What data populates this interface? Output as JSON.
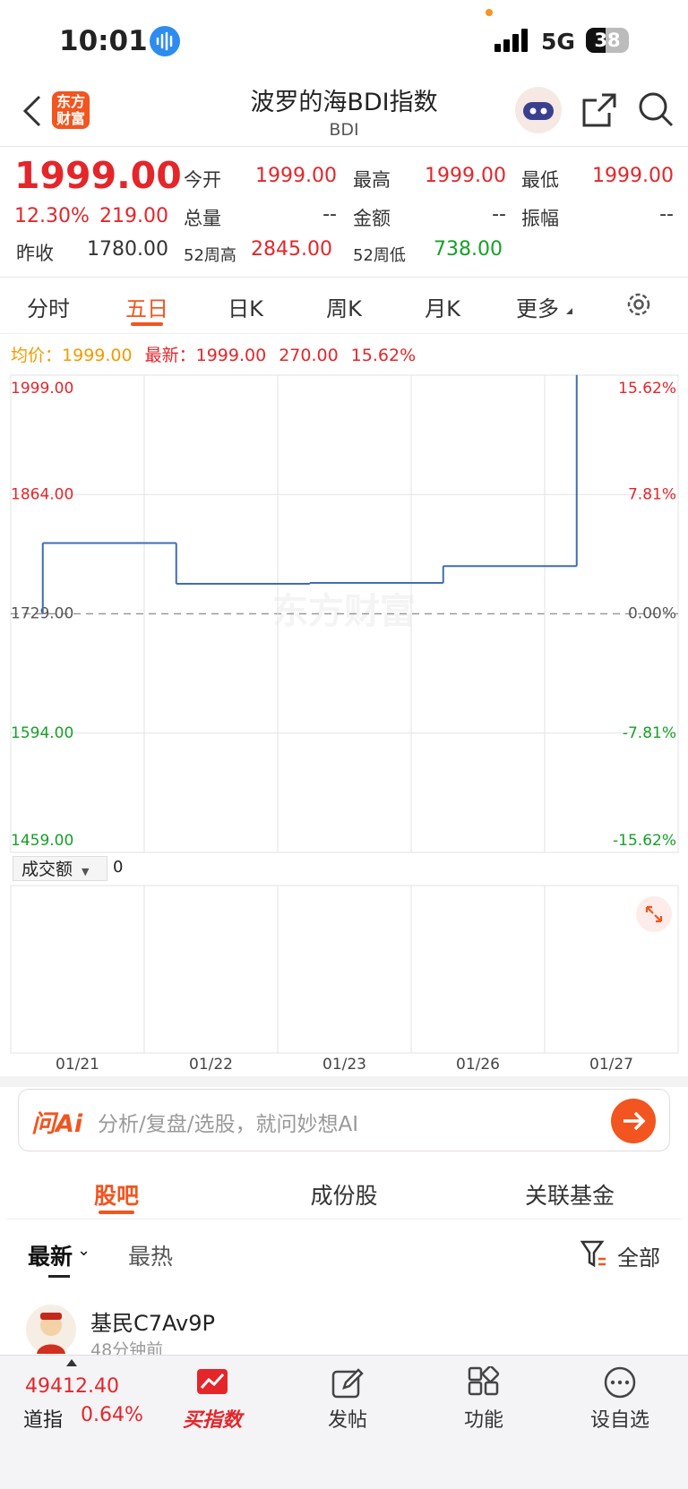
{
  "status": {
    "time": "10:01",
    "network": "5G",
    "battery": "38"
  },
  "header": {
    "logo": [
      "东方",
      "财富"
    ],
    "title": "波罗的海BDI指数",
    "code": "BDI"
  },
  "quote": {
    "price": "1999.00",
    "change_pct": "12.30%",
    "change": "219.00",
    "fields": [
      {
        "label": "今开",
        "value": "1999.00"
      },
      {
        "label": "最高",
        "value": "1999.00"
      },
      {
        "label": "最低",
        "value": "1999.00"
      },
      {
        "label": "总量",
        "value": "--"
      },
      {
        "label": "金额",
        "value": "--"
      },
      {
        "label": "振幅",
        "value": "--"
      },
      {
        "label": "昨收",
        "value": "1780.00"
      },
      {
        "label": "52周高",
        "value": "2845.00"
      },
      {
        "label": "52周低",
        "value": "738.00"
      }
    ]
  },
  "tabs": {
    "items": [
      "分时",
      "五日",
      "日K",
      "周K",
      "月K",
      "更多"
    ],
    "active": 1
  },
  "legend": {
    "avg_label": "均价：",
    "avg": "1999.00",
    "latest_label": "最新：",
    "latest": "1999.00",
    "change": "270.00",
    "pct": "15.62%"
  },
  "chart_data": {
    "type": "line",
    "categories": [
      "01/21",
      "01/22",
      "01/23",
      "01/26",
      "01/27"
    ],
    "values": [
      1809,
      1763,
      1764,
      1783,
      1999
    ],
    "color": "#3d6eb4",
    "ylim": [
      1459,
      1999
    ],
    "yticks": [
      {
        "value": 1459,
        "label": "1459.00"
      },
      {
        "value": 1594,
        "label": "1594.00"
      },
      {
        "value": 1729,
        "label": "1729.00"
      },
      {
        "value": 1864,
        "label": "1864.00"
      },
      {
        "value": 1999,
        "label": "1999.00"
      }
    ],
    "y2lim": [
      -15.62,
      15.62
    ],
    "y2ticks": [
      {
        "value": -15.62,
        "label": "-15.62%"
      },
      {
        "value": -7.81,
        "label": "-7.81%"
      },
      {
        "value": 0,
        "label": "0.00%"
      },
      {
        "value": 7.81,
        "label": "7.81%"
      },
      {
        "value": 15.62,
        "label": "15.62%"
      }
    ],
    "grid": true,
    "up_color": "#e4262a",
    "down_color": "#17a02a",
    "watermark": "东方财富"
  },
  "volume": {
    "selector": "成交额",
    "value": "0"
  },
  "ai": {
    "logo": "问Ai",
    "placeholder": "分析/复盘/选股，就问妙想AI"
  },
  "sections": {
    "items": [
      "股吧",
      "成份股",
      "关联基金"
    ],
    "active": 0
  },
  "filters": {
    "items": [
      "最新",
      "最热"
    ],
    "all": "全部"
  },
  "post": {
    "user": "基民C7Av9P",
    "time": "48分钟前"
  },
  "bottom": {
    "index_value": "49412.40",
    "index_name": "道指",
    "index_pct": "0.64%",
    "buttons": [
      "买指数",
      "发帖",
      "功能",
      "设自选"
    ]
  }
}
